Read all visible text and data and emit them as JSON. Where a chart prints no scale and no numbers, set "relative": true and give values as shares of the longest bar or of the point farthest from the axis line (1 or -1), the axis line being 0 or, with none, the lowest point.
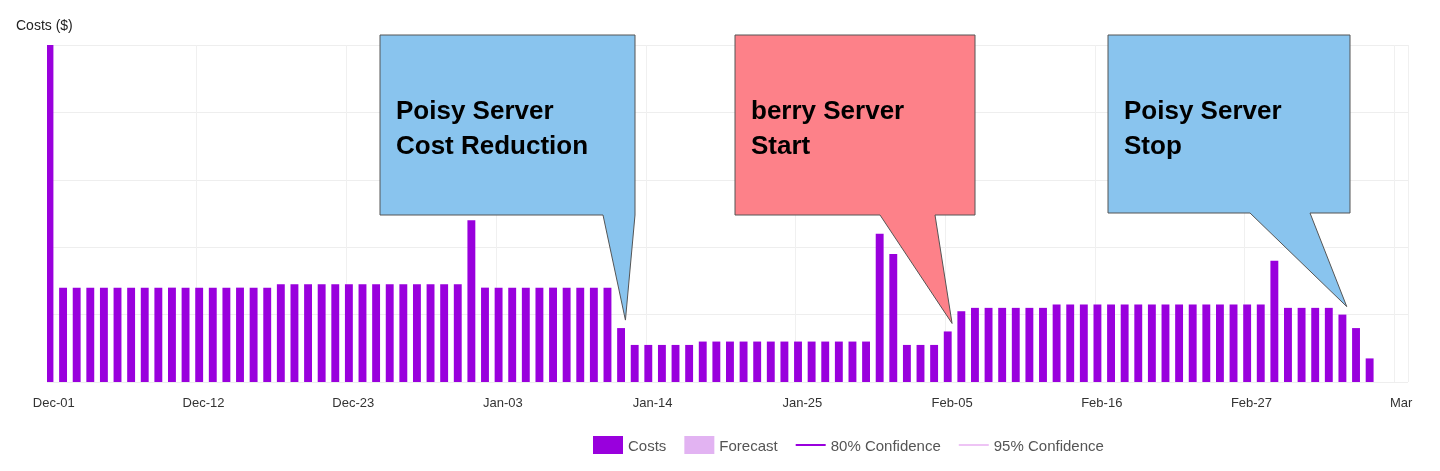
{
  "chart_data": {
    "type": "bar",
    "relative": true,
    "ylabel": "Costs ($)",
    "grid": true,
    "legend": "bottom",
    "categories": [
      "Dec-01",
      null,
      null,
      null,
      null,
      null,
      null,
      null,
      null,
      null,
      null,
      "Dec-12",
      null,
      null,
      null,
      null,
      null,
      null,
      null,
      null,
      null,
      null,
      "Dec-23",
      null,
      null,
      null,
      null,
      null,
      null,
      null,
      null,
      null,
      null,
      "Jan-03",
      null,
      null,
      null,
      null,
      null,
      null,
      null,
      null,
      null,
      null,
      "Jan-14",
      null,
      null,
      null,
      null,
      null,
      null,
      null,
      null,
      null,
      null,
      "Jan-25",
      null,
      null,
      null,
      null,
      null,
      null,
      null,
      null,
      null,
      null,
      "Feb-05",
      null,
      null,
      null,
      null,
      null,
      null,
      null,
      null,
      null,
      null,
      "Feb-16",
      null,
      null,
      null,
      null,
      null,
      null,
      null,
      null,
      null,
      null,
      "Feb-27",
      null,
      null,
      null,
      null,
      null,
      null,
      null,
      null,
      null,
      null,
      "Mar"
    ],
    "series": [
      {
        "name": "Costs",
        "color": "#9900dd",
        "values": [
          1,
          0.28,
          0.28,
          0.28,
          0.28,
          0.28,
          0.28,
          0.28,
          0.28,
          0.28,
          0.28,
          0.28,
          0.28,
          0.28,
          0.28,
          0.28,
          0.28,
          0.29,
          0.29,
          0.29,
          0.29,
          0.29,
          0.29,
          0.29,
          0.29,
          0.29,
          0.29,
          0.29,
          0.29,
          0.29,
          0.29,
          0.48,
          0.28,
          0.28,
          0.28,
          0.28,
          0.28,
          0.28,
          0.28,
          0.28,
          0.28,
          0.28,
          0.16,
          0.11,
          0.11,
          0.11,
          0.11,
          0.11,
          0.12,
          0.12,
          0.12,
          0.12,
          0.12,
          0.12,
          0.12,
          0.12,
          0.12,
          0.12,
          0.12,
          0.12,
          0.12,
          0.44,
          0.38,
          0.11,
          0.11,
          0.11,
          0.15,
          0.21,
          0.22,
          0.22,
          0.22,
          0.22,
          0.22,
          0.22,
          0.23,
          0.23,
          0.23,
          0.23,
          0.23,
          0.23,
          0.23,
          0.23,
          0.23,
          0.23,
          0.23,
          0.23,
          0.23,
          0.23,
          0.23,
          0.23,
          0.36,
          0.22,
          0.22,
          0.22,
          0.22,
          0.2,
          0.16,
          0.07,
          null,
          null
        ]
      },
      {
        "name": "Forecast",
        "type": "bar",
        "color": "#e2b3f2",
        "values": [
          null,
          null,
          null,
          null,
          null,
          null,
          null,
          null,
          null,
          null,
          null,
          null,
          null,
          null,
          null,
          null,
          null,
          null,
          null,
          null,
          null,
          null,
          null,
          null,
          null,
          null,
          null,
          null,
          null,
          null,
          null,
          null,
          null,
          null,
          null,
          null,
          null,
          null,
          null,
          null,
          null,
          null,
          null,
          null,
          null,
          null,
          null,
          null,
          null,
          null,
          null,
          null,
          null,
          null,
          null,
          null,
          null,
          null,
          null,
          null,
          null,
          null,
          null,
          null,
          null,
          null,
          null,
          null,
          null,
          null,
          null,
          null,
          null,
          null,
          null,
          null,
          null,
          null,
          null,
          null,
          null,
          null,
          null,
          null,
          null,
          null,
          null,
          null,
          null,
          null,
          null,
          null,
          null,
          null,
          null,
          null,
          null,
          null,
          null,
          null
        ]
      },
      {
        "name": "80% Confidence",
        "type": "line",
        "color": "#9900dd",
        "values": [
          null,
          null,
          null,
          null,
          null,
          null,
          null,
          null,
          null,
          null,
          null,
          null,
          null,
          null,
          null,
          null,
          null,
          null,
          null,
          null,
          null,
          null,
          null,
          null,
          null,
          null,
          null,
          null,
          null,
          null,
          null,
          null,
          null,
          null,
          null,
          null,
          null,
          null,
          null,
          null,
          null,
          null,
          null,
          null,
          null,
          null,
          null,
          null,
          null,
          null,
          null,
          null,
          null,
          null,
          null,
          null,
          null,
          null,
          null,
          null,
          null,
          null,
          null,
          null,
          null,
          null,
          null,
          null,
          null,
          null,
          null,
          null,
          null,
          null,
          null,
          null,
          null,
          null,
          null,
          null,
          null,
          null,
          null,
          null,
          null,
          null,
          null,
          null,
          null,
          null,
          null,
          null,
          null,
          null,
          null,
          null,
          null,
          null,
          null,
          null
        ]
      },
      {
        "name": "95% Confidence",
        "type": "line",
        "color": "#eec4f5",
        "values": [
          null,
          null,
          null,
          null,
          null,
          null,
          null,
          null,
          null,
          null,
          null,
          null,
          null,
          null,
          null,
          null,
          null,
          null,
          null,
          null,
          null,
          null,
          null,
          null,
          null,
          null,
          null,
          null,
          null,
          null,
          null,
          null,
          null,
          null,
          null,
          null,
          null,
          null,
          null,
          null,
          null,
          null,
          null,
          null,
          null,
          null,
          null,
          null,
          null,
          null,
          null,
          null,
          null,
          null,
          null,
          null,
          null,
          null,
          null,
          null,
          null,
          null,
          null,
          null,
          null,
          null,
          null,
          null,
          null,
          null,
          null,
          null,
          null,
          null,
          null,
          null,
          null,
          null,
          null,
          null,
          null,
          null,
          null,
          null,
          null,
          null,
          null,
          null,
          null,
          null,
          null,
          null,
          null,
          null,
          null,
          null,
          null,
          null,
          null,
          null
        ]
      }
    ],
    "annotations": [
      "Poisy Server\nCost Reduction",
      "berry Server\nStart",
      "Poisy Server\nStop"
    ]
  }
}
